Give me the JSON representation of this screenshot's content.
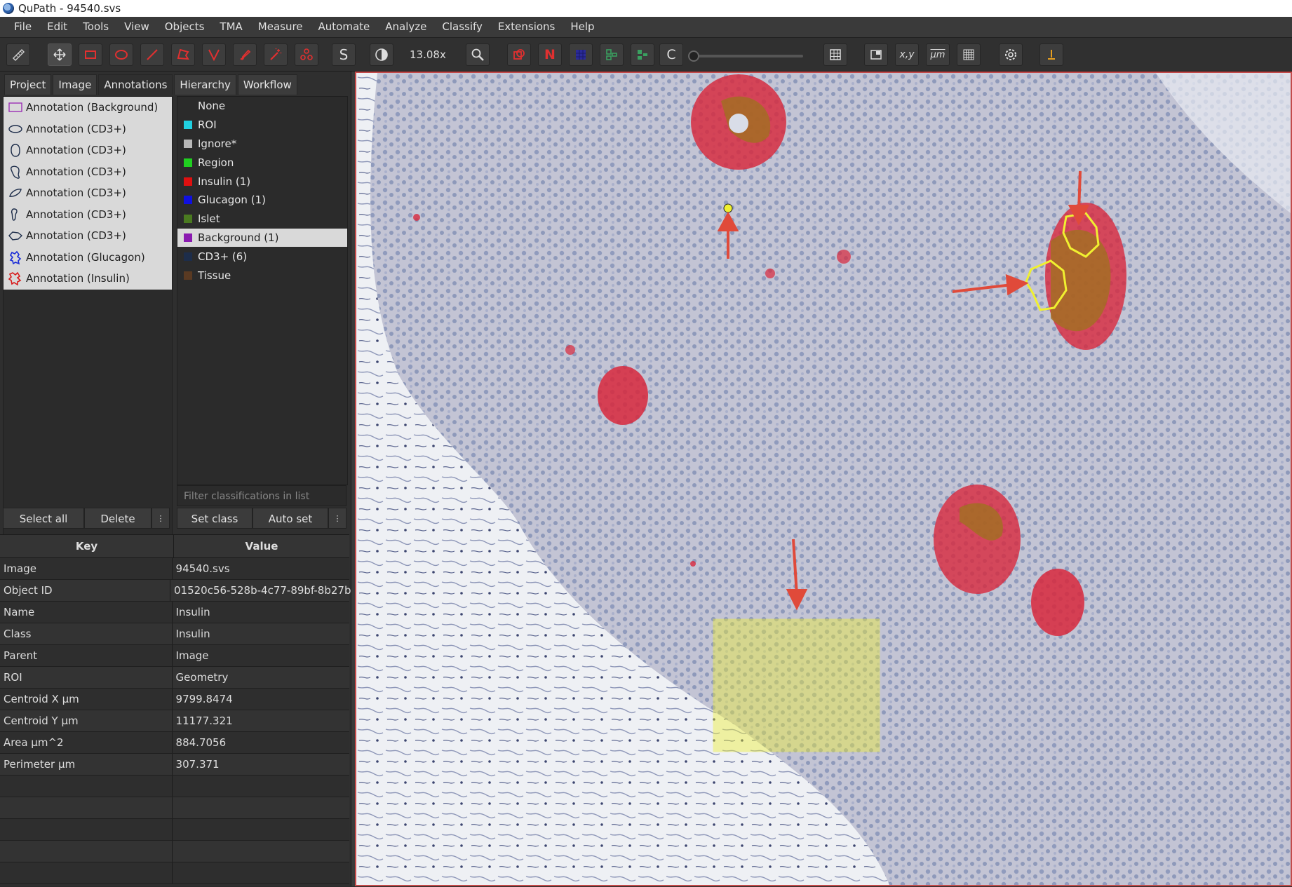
{
  "window": {
    "title": "QuPath - 94540.svs"
  },
  "menu": [
    "File",
    "Edit",
    "Tools",
    "View",
    "Objects",
    "TMA",
    "Measure",
    "Automate",
    "Analyze",
    "Classify",
    "Extensions",
    "Help"
  ],
  "toolbar": {
    "tools": [
      "measure-ruler-icon",
      "move-icon",
      "rectangle-icon",
      "ellipse-icon",
      "line-icon",
      "polygon-icon",
      "polyline-icon",
      "brush-icon",
      "wand-icon",
      "points-icon"
    ],
    "s_label": "S",
    "zoom": "13.08x",
    "n_label": "N",
    "c_label": "C",
    "xy_label": "x,y",
    "um_label": "μm"
  },
  "tabs": [
    "Project",
    "Image",
    "Annotations",
    "Hierarchy",
    "Workflow"
  ],
  "annotations": [
    {
      "label": "Annotation (Background)",
      "icon": "rectangle-icon",
      "color": "#9b2fb5"
    },
    {
      "label": "Annotation (CD3+)",
      "icon": "ellipse-icon",
      "color": "#1d2d4a"
    },
    {
      "label": "Annotation (CD3+)",
      "icon": "blob-icon",
      "color": "#1d2d4a"
    },
    {
      "label": "Annotation (CD3+)",
      "icon": "blob-icon",
      "color": "#1d2d4a"
    },
    {
      "label": "Annotation (CD3+)",
      "icon": "ellipse-icon",
      "color": "#1d2d4a"
    },
    {
      "label": "Annotation (CD3+)",
      "icon": "blob-icon",
      "color": "#1d2d4a"
    },
    {
      "label": "Annotation (CD3+)",
      "icon": "blob-icon",
      "color": "#1d2d4a"
    },
    {
      "label": "Annotation (Glucagon)",
      "icon": "blob-icon",
      "color": "#1a2cd8"
    },
    {
      "label": "Annotation (Insulin)",
      "icon": "blob-icon",
      "color": "#d81a1a"
    }
  ],
  "classes": [
    {
      "label": "None",
      "color": ""
    },
    {
      "label": "ROI",
      "color": "#20d0e0"
    },
    {
      "label": "Ignore*",
      "color": "#b8b8b8"
    },
    {
      "label": "Region",
      "color": "#20d020"
    },
    {
      "label": "Insulin (1)",
      "color": "#e01010"
    },
    {
      "label": "Glucagon (1)",
      "color": "#1010e0"
    },
    {
      "label": "Islet",
      "color": "#4a7a20"
    },
    {
      "label": "Background (1)",
      "color": "#8a1ab0",
      "selected": true
    },
    {
      "label": "CD3+ (6)",
      "color": "#1d2d4a"
    },
    {
      "label": "Tissue",
      "color": "#5a3a22"
    }
  ],
  "class_filter_placeholder": "Filter classifications in list",
  "buttons": {
    "select_all": "Select all",
    "delete": "Delete",
    "more": "⋮",
    "set_class": "Set class",
    "auto_set": "Auto set"
  },
  "kv_table": {
    "headers": {
      "key": "Key",
      "value": "Value"
    },
    "rows": [
      {
        "key": "Image",
        "value": "94540.svs"
      },
      {
        "key": "Object ID",
        "value": "01520c56-528b-4c77-89bf-8b27b..."
      },
      {
        "key": "Name",
        "value": "Insulin"
      },
      {
        "key": "Class",
        "value": "Insulin"
      },
      {
        "key": "Parent",
        "value": "Image"
      },
      {
        "key": "ROI",
        "value": "Geometry"
      },
      {
        "key": "Centroid X µm",
        "value": "9799.8474"
      },
      {
        "key": "Centroid Y µm",
        "value": "11177.321"
      },
      {
        "key": "Area µm^2",
        "value": "884.7056"
      },
      {
        "key": "Perimeter µm",
        "value": "307.371"
      }
    ]
  },
  "colors": {
    "tissue": "#b9bed6",
    "stroma": "#eceef3",
    "insulin_stain": "#d8283c",
    "glucagon_stain": "#a07020",
    "annotation_yellow": "#f0f030",
    "arrow": "#e04a3a"
  }
}
